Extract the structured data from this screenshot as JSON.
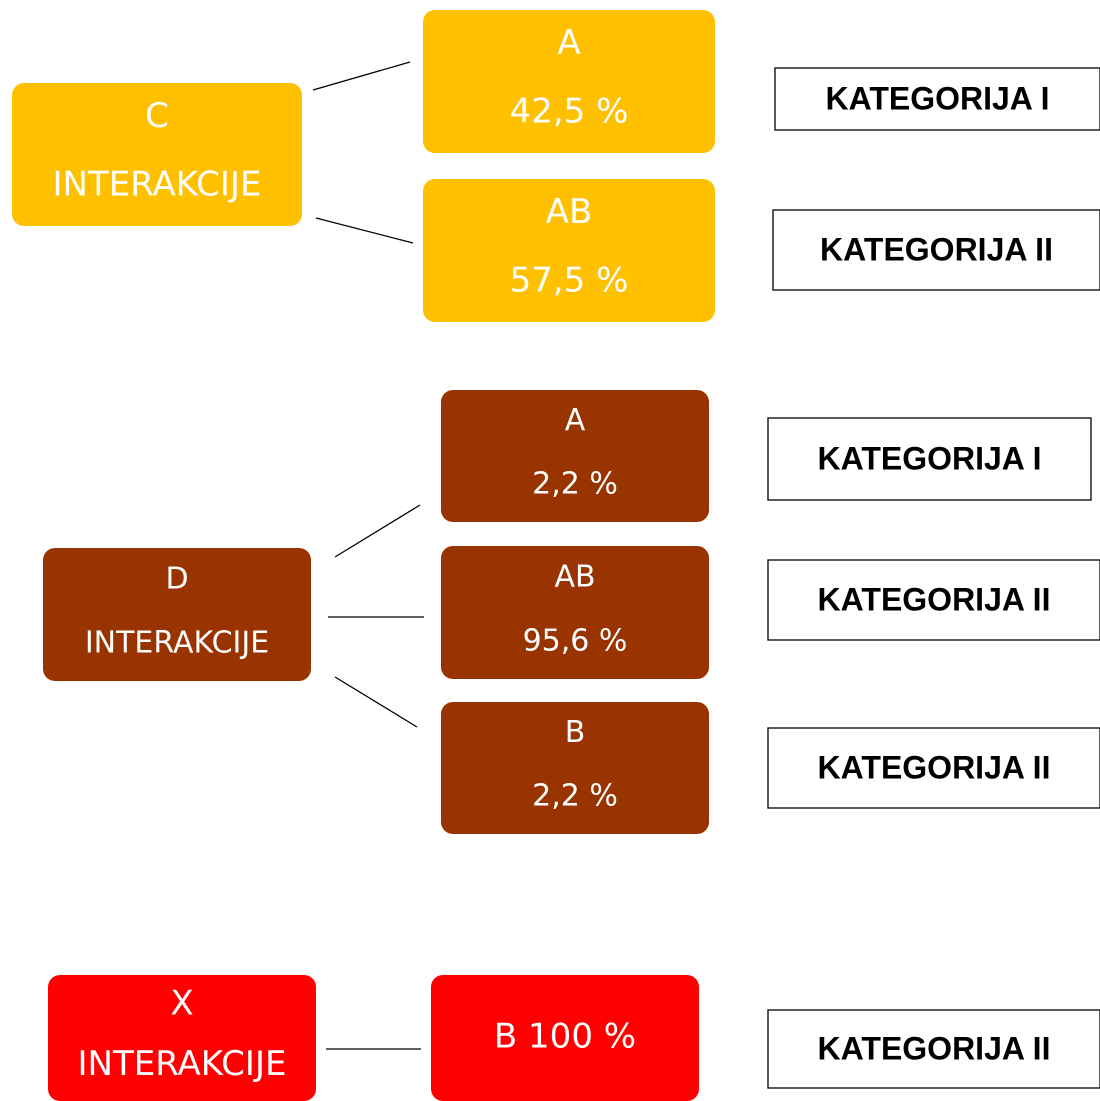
{
  "groups": [
    {
      "color": "#FFC000",
      "root": {
        "lines": [
          "C",
          "INTERAKCIJE"
        ]
      },
      "children": [
        {
          "lines": [
            "A",
            "42,5 %"
          ],
          "category": "KATEGORIJA I"
        },
        {
          "lines": [
            "AB",
            "57,5 %"
          ],
          "category": "KATEGORIJA II"
        }
      ]
    },
    {
      "color": "#993300",
      "root": {
        "lines": [
          "D",
          "INTERAKCIJE"
        ]
      },
      "children": [
        {
          "lines": [
            "A",
            "2,2 %"
          ],
          "category": "KATEGORIJA I"
        },
        {
          "lines": [
            "AB",
            "95,6 %"
          ],
          "category": "KATEGORIJA II"
        },
        {
          "lines": [
            "B",
            "2,2 %"
          ],
          "category": "KATEGORIJA II"
        }
      ]
    },
    {
      "color": "#FF0000",
      "root": {
        "lines": [
          "X",
          "INTERAKCIJE"
        ]
      },
      "children": [
        {
          "lines": [
            "B 100 %"
          ],
          "category": "KATEGORIJA II"
        }
      ]
    }
  ]
}
